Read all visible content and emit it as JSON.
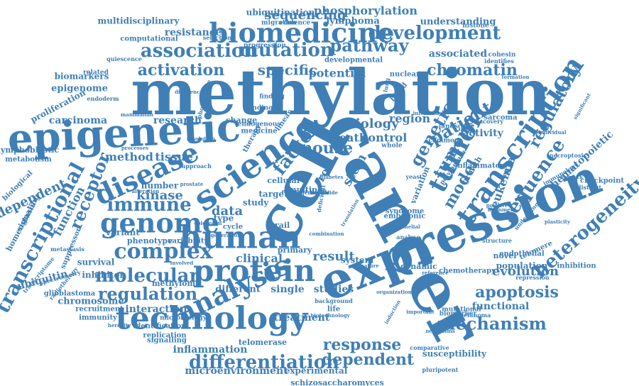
{
  "cloud": {
    "color": "#3f7fb6",
    "shape": "ellipse",
    "words": [
      {
        "text": "methylation",
        "size": 88
      },
      {
        "text": "cancer",
        "size": 96
      },
      {
        "text": "cell",
        "size": 92
      },
      {
        "text": "expression",
        "size": 70
      },
      {
        "text": "epigenetic",
        "size": 56
      },
      {
        "text": "science",
        "size": 48
      },
      {
        "text": "human",
        "size": 44
      },
      {
        "text": "protein",
        "size": 42
      },
      {
        "text": "technology",
        "size": 44
      },
      {
        "text": "transcription",
        "size": 38
      },
      {
        "text": "biomedicine",
        "size": 38
      },
      {
        "text": "genome",
        "size": 38
      },
      {
        "text": "disease",
        "size": 38
      },
      {
        "text": "analysis",
        "size": 38
      },
      {
        "text": "tumor",
        "size": 36
      },
      {
        "text": "complex",
        "size": 30
      },
      {
        "text": "association",
        "size": 26
      },
      {
        "text": "development",
        "size": 26
      },
      {
        "text": "mutation",
        "size": 26
      },
      {
        "text": "transcriptional",
        "size": 28
      },
      {
        "text": "heterogeneity",
        "size": 26
      },
      {
        "text": "sequencing",
        "size": 18
      },
      {
        "text": "phosphorylation",
        "size": 16
      },
      {
        "text": "chromatin",
        "size": 22
      },
      {
        "text": "pathway",
        "size": 24
      },
      {
        "text": "activation",
        "size": 22
      },
      {
        "text": "specific",
        "size": 20
      },
      {
        "text": "potential",
        "size": 16
      },
      {
        "text": "regulation",
        "size": 24
      },
      {
        "text": "molecular",
        "size": 26
      },
      {
        "text": "immune",
        "size": 26
      },
      {
        "text": "differentiation",
        "size": 26
      },
      {
        "text": "mechanism",
        "size": 24
      },
      {
        "text": "apoptosis",
        "size": 22
      },
      {
        "text": "response",
        "size": 22
      },
      {
        "text": "dependent",
        "size": 22
      },
      {
        "text": "evolution",
        "size": 18
      },
      {
        "text": "sequence",
        "size": 26
      },
      {
        "text": "regulatory",
        "size": 22
      },
      {
        "text": "patient",
        "size": 24
      },
      {
        "text": "mouse",
        "size": 22
      },
      {
        "text": "biology",
        "size": 18
      },
      {
        "text": "factor",
        "size": 26
      },
      {
        "text": "receptor",
        "size": 24
      },
      {
        "text": "genetic",
        "size": 24
      },
      {
        "text": "tumour",
        "size": 22
      },
      {
        "text": "model",
        "size": 22
      },
      {
        "text": "leukemia",
        "size": 16
      },
      {
        "text": "stem",
        "size": 18
      },
      {
        "text": "kinase",
        "size": 18
      },
      {
        "text": "data",
        "size": 18
      },
      {
        "text": "role",
        "size": 16
      },
      {
        "text": "research",
        "size": 14
      },
      {
        "text": "method",
        "size": 16
      },
      {
        "text": "tissue",
        "size": 16
      },
      {
        "text": "carcinoma",
        "size": 14
      },
      {
        "text": "independent",
        "size": 18
      },
      {
        "text": "function",
        "size": 16
      },
      {
        "text": "region",
        "size": 16
      },
      {
        "text": "control",
        "size": 16
      },
      {
        "text": "death",
        "size": 16
      },
      {
        "text": "activity",
        "size": 14
      },
      {
        "text": "hematopoietic",
        "size": 14
      },
      {
        "text": "result",
        "size": 18
      },
      {
        "text": "clinical",
        "size": 16
      },
      {
        "text": "interaction",
        "size": 14
      },
      {
        "text": "treatment",
        "size": 14
      },
      {
        "text": "studies",
        "size": 14
      },
      {
        "text": "single",
        "size": 14
      },
      {
        "text": "different",
        "size": 13
      },
      {
        "text": "functional",
        "size": 14
      },
      {
        "text": "microenvironment",
        "size": 14
      },
      {
        "text": "experimental",
        "size": 12
      },
      {
        "text": "inflammation",
        "size": 14
      },
      {
        "text": "schizosaccharomyces",
        "size": 11
      },
      {
        "text": "susceptibility",
        "size": 12
      },
      {
        "text": "resistance",
        "size": 14
      },
      {
        "text": "lymphoma",
        "size": 13
      },
      {
        "text": "associated",
        "size": 14
      },
      {
        "text": "understanding",
        "size": 13
      },
      {
        "text": "ubiquitination",
        "size": 12
      },
      {
        "text": "multidisciplinary",
        "size": 12
      },
      {
        "text": "computational",
        "size": 10
      },
      {
        "text": "developmental",
        "size": 10
      },
      {
        "text": "proliferation",
        "size": 12
      },
      {
        "text": "epigenome",
        "size": 13
      },
      {
        "text": "biomarkers",
        "size": 12
      },
      {
        "text": "lymphoblastic",
        "size": 11
      },
      {
        "text": "metabolism",
        "size": 10
      },
      {
        "text": "phenotype",
        "size": 11
      },
      {
        "text": "variability",
        "size": 10
      },
      {
        "text": "number",
        "size": 12
      },
      {
        "text": "variant",
        "size": 12
      },
      {
        "text": "survival",
        "size": 12
      },
      {
        "text": "inhibitor",
        "size": 12
      },
      {
        "text": "methylome",
        "size": 11
      },
      {
        "text": "recruitment",
        "size": 10
      },
      {
        "text": "immunity",
        "size": 10
      },
      {
        "text": "chromosome",
        "size": 13
      },
      {
        "text": "identification",
        "size": 10
      },
      {
        "text": "microbiology",
        "size": 9
      },
      {
        "text": "replication",
        "size": 10
      },
      {
        "text": "signalling",
        "size": 10
      },
      {
        "text": "telomerase",
        "size": 11
      },
      {
        "text": "comparative",
        "size": 8
      },
      {
        "text": "pluripotent",
        "size": 8
      },
      {
        "text": "suppressor",
        "size": 10
      },
      {
        "text": "metastasis",
        "size": 8
      },
      {
        "text": "spectrometry",
        "size": 8
      },
      {
        "text": "ubiquitin",
        "size": 14
      },
      {
        "text": "signaling",
        "size": 11
      },
      {
        "text": "homeostasis",
        "size": 11
      },
      {
        "text": "biological",
        "size": 10
      },
      {
        "text": "glioblastoma",
        "size": 10
      },
      {
        "text": "radiotherapy",
        "size": 8
      },
      {
        "text": "transcriptome",
        "size": 8
      },
      {
        "text": "necroptosis",
        "size": 8
      },
      {
        "text": "immunology",
        "size": 8
      },
      {
        "text": "underlying",
        "size": 8
      },
      {
        "text": "checkpoint",
        "size": 10
      },
      {
        "text": "telomere",
        "size": 10
      },
      {
        "text": "inhibition",
        "size": 10
      },
      {
        "text": "repression",
        "size": 8
      },
      {
        "text": "population",
        "size": 12
      },
      {
        "text": "chemotherapy",
        "size": 10
      },
      {
        "text": "endothelial",
        "size": 10
      },
      {
        "text": "mutational",
        "size": 9
      },
      {
        "text": "melanoma",
        "size": 8
      },
      {
        "text": "biomarker",
        "size": 9
      },
      {
        "text": "inflammatory",
        "size": 10
      },
      {
        "text": "polymerase",
        "size": 9
      },
      {
        "text": "landscape",
        "size": 9
      },
      {
        "text": "sarcoma",
        "size": 10
      },
      {
        "text": "growth",
        "size": 11
      },
      {
        "text": "variation",
        "size": 11
      },
      {
        "text": "syndrome",
        "size": 10
      },
      {
        "text": "embryonic",
        "size": 10
      },
      {
        "text": "dynamic",
        "size": 11
      },
      {
        "text": "lineage",
        "size": 11
      },
      {
        "text": "novel",
        "size": 11
      },
      {
        "text": "system",
        "size": 12
      },
      {
        "text": "primary",
        "size": 11
      },
      {
        "text": "change",
        "size": 11
      },
      {
        "text": "medicine",
        "size": 10
      },
      {
        "text": "therapy",
        "size": 10
      },
      {
        "text": "linear",
        "size": 10
      },
      {
        "text": "cellular",
        "size": 11
      },
      {
        "text": "target",
        "size": 12
      },
      {
        "text": "study",
        "size": 12
      },
      {
        "text": "multiple",
        "size": 11
      },
      {
        "text": "type",
        "size": 12
      },
      {
        "text": "trail",
        "size": 11
      },
      {
        "text": "cycle",
        "size": 10
      },
      {
        "text": "life",
        "size": 10
      },
      {
        "text": "blood",
        "size": 10
      },
      {
        "text": "whole",
        "size": 9
      },
      {
        "text": "common",
        "size": 9
      },
      {
        "text": "cohesin",
        "size": 9
      },
      {
        "text": "identifies",
        "size": 8
      },
      {
        "text": "nuclear",
        "size": 10
      },
      {
        "text": "finding",
        "size": 9
      },
      {
        "text": "binding",
        "size": 9
      },
      {
        "text": "endogenous",
        "size": 9
      },
      {
        "text": "progression",
        "size": 9
      },
      {
        "text": "evidence",
        "size": 9
      },
      {
        "text": "migration",
        "size": 9
      },
      {
        "text": "histone",
        "size": 9
      },
      {
        "text": "selection",
        "size": 8
      },
      {
        "text": "related",
        "size": 9
      },
      {
        "text": "quiescence",
        "size": 8
      },
      {
        "text": "endoderm",
        "size": 8
      },
      {
        "text": "mammalian",
        "size": 7
      },
      {
        "text": "difference",
        "size": 7
      },
      {
        "text": "senescence",
        "size": 7
      },
      {
        "text": "phosphatase",
        "size": 8
      },
      {
        "text": "resolution",
        "size": 7
      },
      {
        "text": "alteration",
        "size": 7
      },
      {
        "text": "processes",
        "size": 7
      },
      {
        "text": "prostate",
        "size": 7
      },
      {
        "text": "colorectal",
        "size": 7
      },
      {
        "text": "generation",
        "size": 7
      },
      {
        "text": "involved",
        "size": 7
      },
      {
        "text": "heredity",
        "size": 7
      },
      {
        "text": "alignment",
        "size": 7
      },
      {
        "text": "plasticity",
        "size": 7
      },
      {
        "text": "network",
        "size": 7
      },
      {
        "text": "distinct",
        "size": 8
      },
      {
        "text": "individual",
        "size": 7
      },
      {
        "text": "significant",
        "size": 7
      },
      {
        "text": "discovery",
        "size": 8
      },
      {
        "text": "information",
        "size": 7
      },
      {
        "text": "formation",
        "size": 7
      },
      {
        "text": "biotechnology",
        "size": 7
      },
      {
        "text": "background",
        "size": 8
      },
      {
        "text": "organization",
        "size": 7
      },
      {
        "text": "induction",
        "size": 7
      },
      {
        "text": "neoplasms",
        "size": 7
      },
      {
        "text": "important",
        "size": 7
      },
      {
        "text": "reference",
        "size": 7
      },
      {
        "text": "positive",
        "size": 7
      },
      {
        "text": "structure",
        "size": 8
      },
      {
        "text": "signature",
        "size": 7
      },
      {
        "text": "translation",
        "size": 7
      },
      {
        "text": "epithelial",
        "size": 7
      },
      {
        "text": "enhancer",
        "size": 7
      },
      {
        "text": "combination",
        "size": 7
      },
      {
        "text": "approach",
        "size": 8
      },
      {
        "text": "diabetes",
        "size": 7
      },
      {
        "text": "deficient",
        "size": 8
      },
      {
        "text": "analyse",
        "size": 8
      },
      {
        "text": "yeast",
        "size": 8
      },
      {
        "text": "lung",
        "size": 8
      },
      {
        "text": "sample",
        "size": 7
      },
      {
        "text": "level",
        "size": 8
      },
      {
        "text": "fission",
        "size": 7
      },
      {
        "text": "innate",
        "size": 7
      },
      {
        "text": "normal",
        "size": 7
      },
      {
        "text": "genome-wide",
        "size": 7
      }
    ]
  }
}
